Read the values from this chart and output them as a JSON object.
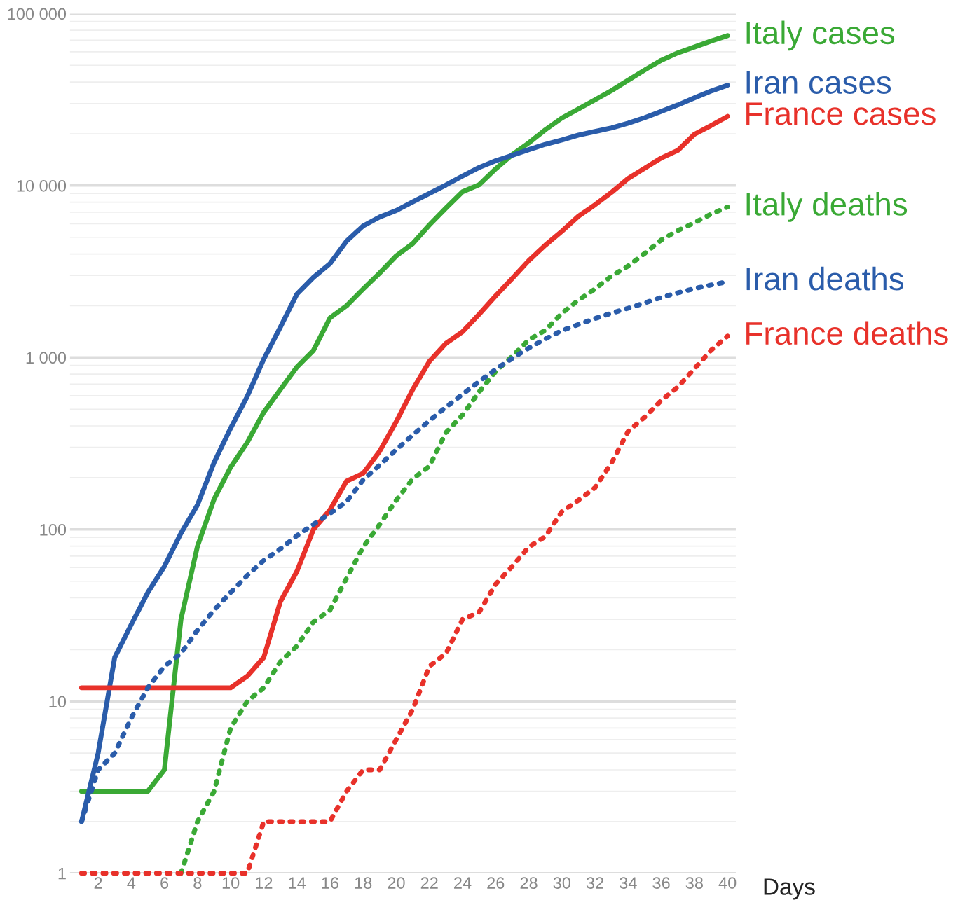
{
  "chart_data": {
    "type": "line",
    "xlabel": "Days",
    "log": "y",
    "grid": "y",
    "legend": false,
    "marker": "none",
    "x": [
      1,
      2,
      3,
      4,
      5,
      6,
      7,
      8,
      9,
      10,
      11,
      12,
      13,
      14,
      15,
      16,
      17,
      18,
      19,
      20,
      21,
      22,
      23,
      24,
      25,
      26,
      27,
      28,
      29,
      30,
      31,
      32,
      33,
      34,
      35,
      36,
      37,
      38,
      39,
      40
    ],
    "xlim": [
      0.3,
      40.5
    ],
    "xticks": [
      2,
      4,
      6,
      8,
      10,
      12,
      14,
      16,
      18,
      20,
      22,
      24,
      26,
      28,
      30,
      32,
      34,
      36,
      38,
      40
    ],
    "ylim": [
      1,
      100000
    ],
    "yticks": [
      {
        "value": 1,
        "label": "1"
      },
      {
        "value": 10,
        "label": "10"
      },
      {
        "value": 100,
        "label": "100"
      },
      {
        "value": 1000,
        "label": "1 000"
      },
      {
        "value": 10000,
        "label": "10 000"
      },
      {
        "value": 100000,
        "label": "100 000"
      }
    ],
    "series": [
      {
        "name": "Italy cases",
        "color": "#3aa935",
        "line_style": "solid",
        "values": [
          3,
          3,
          3,
          3,
          3,
          4,
          30,
          80,
          150,
          230,
          320,
          480,
          650,
          880,
          1100,
          1700,
          2000,
          2500,
          3100,
          3900,
          4600,
          5900,
          7400,
          9200,
          10100,
          12500,
          15100,
          17700,
          21100,
          24700,
          27900,
          31500,
          35700,
          41000,
          47000,
          53500,
          59100,
          63900,
          69200,
          74400
        ]
      },
      {
        "name": "Iran cases",
        "color": "#2a5caa",
        "line_style": "solid",
        "values": [
          2,
          5,
          18,
          28,
          43,
          61,
          95,
          139,
          245,
          388,
          593,
          978,
          1501,
          2336,
          2922,
          3513,
          4747,
          5823,
          6566,
          7161,
          8042,
          9000,
          10075,
          11364,
          12729,
          13938,
          14991,
          16169,
          17361,
          18407,
          19644,
          20610,
          21638,
          23049,
          24811,
          27017,
          29406,
          32332,
          35408,
          38309
        ]
      },
      {
        "name": "France cases",
        "color": "#e8312a",
        "line_style": "solid",
        "values": [
          12,
          12,
          12,
          12,
          12,
          12,
          12,
          12,
          12,
          12,
          14,
          18,
          38,
          57,
          100,
          130,
          191,
          212,
          285,
          423,
          653,
          949,
          1209,
          1412,
          1784,
          2281,
          2876,
          3661,
          4499,
          5423,
          6633,
          7730,
          9134,
          10995,
          12612,
          14459,
          16018,
          19856,
          22304,
          25233
        ]
      },
      {
        "name": "Italy deaths",
        "color": "#3aa935",
        "line_style": "dotted",
        "values": [
          null,
          null,
          null,
          null,
          null,
          null,
          1,
          2,
          3,
          7,
          10,
          12,
          17,
          21,
          29,
          34,
          52,
          79,
          107,
          148,
          197,
          233,
          366,
          463,
          631,
          827,
          1016,
          1266,
          1441,
          1809,
          2158,
          2503,
          2978,
          3405,
          4032,
          4825,
          5476,
          6077,
          6820,
          7503
        ]
      },
      {
        "name": "Iran deaths",
        "color": "#2a5caa",
        "line_style": "dotted",
        "values": [
          2,
          4,
          5,
          8,
          12,
          16,
          19,
          26,
          34,
          43,
          54,
          66,
          77,
          92,
          107,
          124,
          145,
          194,
          237,
          291,
          354,
          429,
          514,
          611,
          724,
          853,
          988,
          1135,
          1284,
          1433,
          1556,
          1685,
          1812,
          1934,
          2077,
          2234,
          2378,
          2517,
          2640,
          2757
        ]
      },
      {
        "name": "France deaths",
        "color": "#e8312a",
        "line_style": "dotted",
        "values": [
          1,
          1,
          1,
          1,
          1,
          1,
          1,
          1,
          1,
          1,
          1,
          2,
          2,
          2,
          2,
          2,
          3,
          4,
          4,
          6,
          9,
          16,
          19,
          30,
          33,
          48,
          61,
          79,
          91,
          127,
          148,
          175,
          244,
          372,
          450,
          562,
          674,
          860,
          1100,
          1331
        ]
      }
    ]
  }
}
